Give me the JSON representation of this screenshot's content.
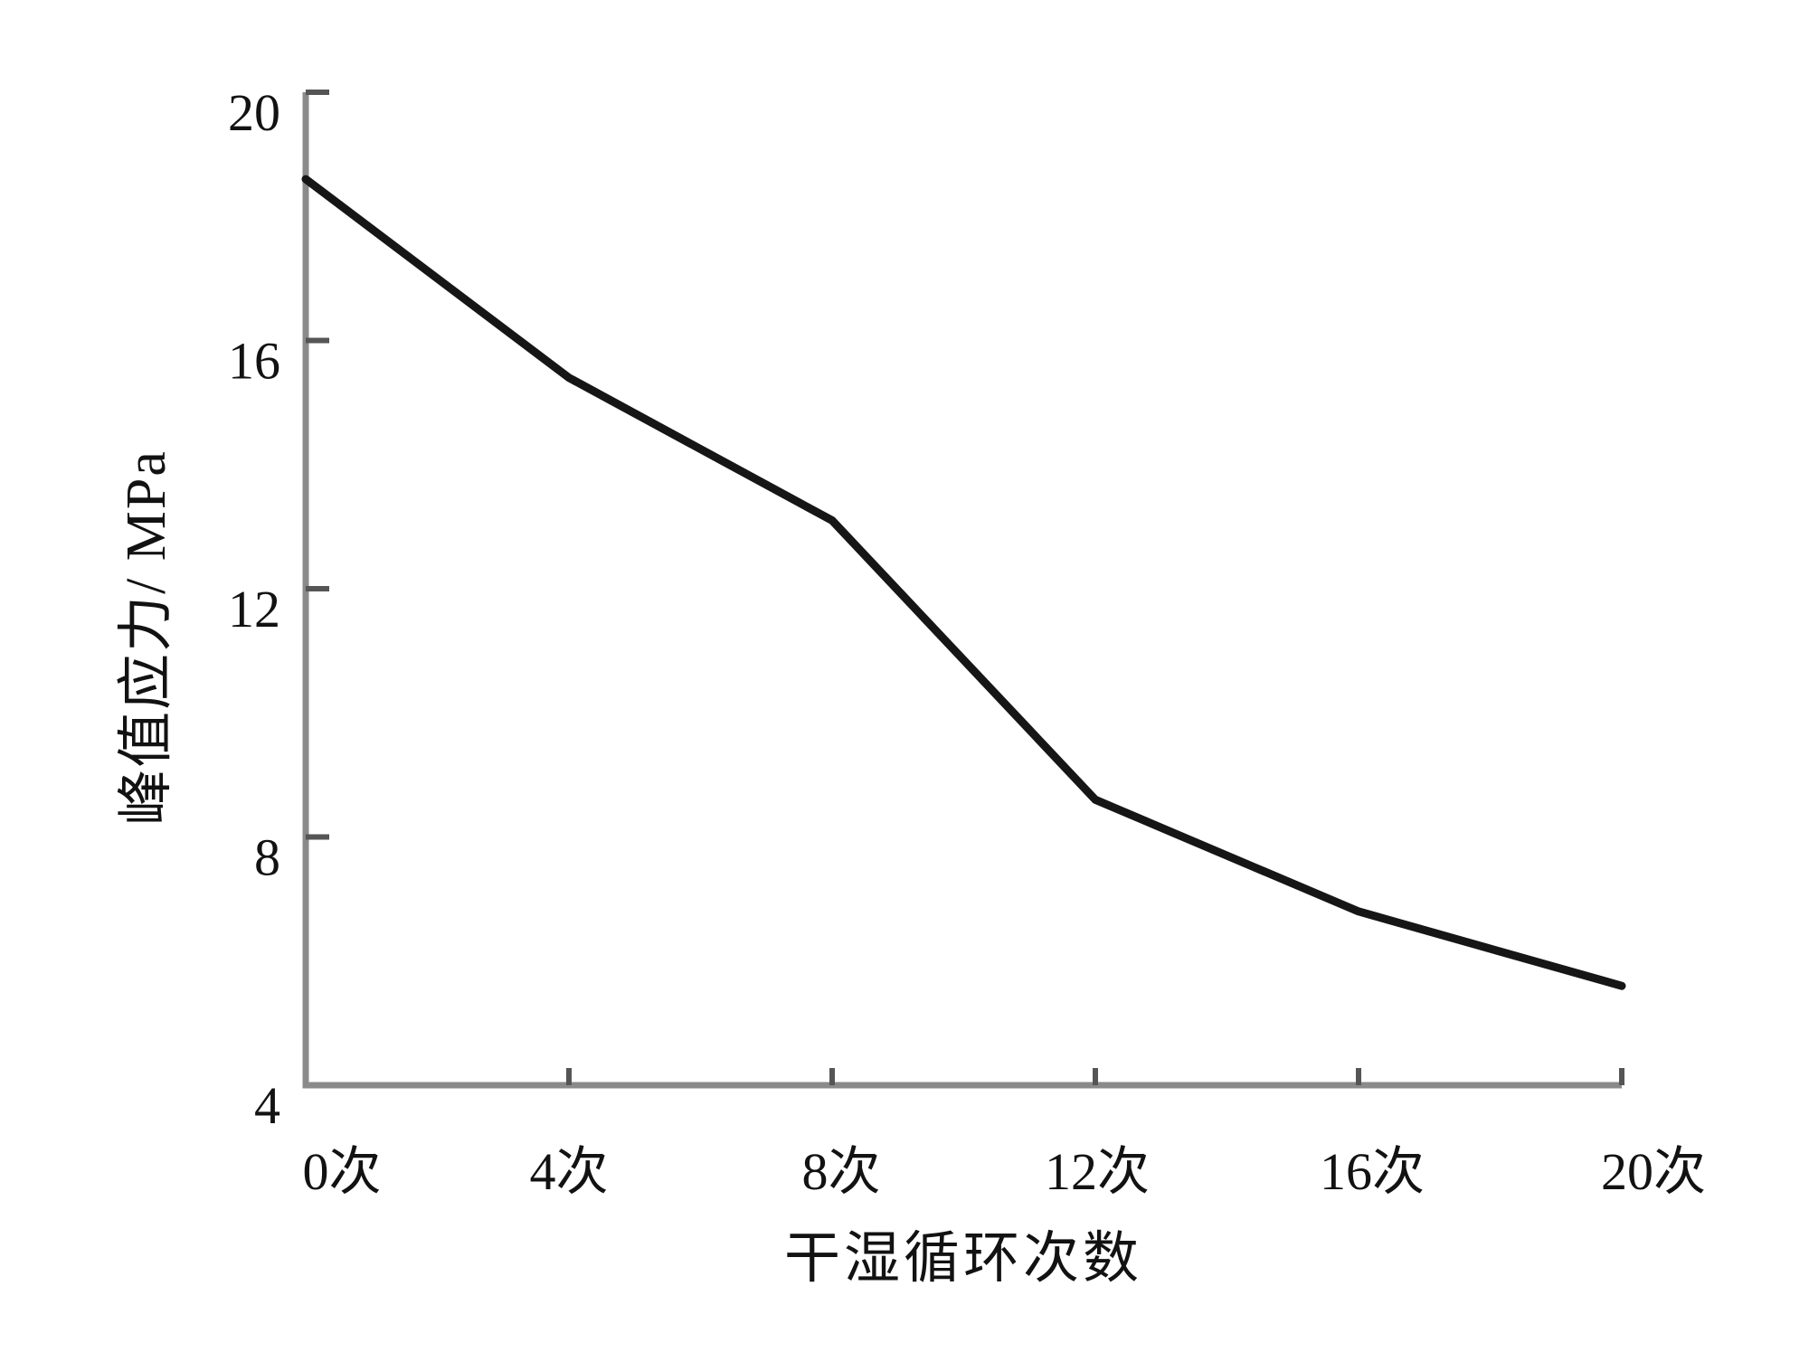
{
  "figure": {
    "background": "#ffffff"
  },
  "chart_data": {
    "type": "line",
    "title": "",
    "xlabel": "干湿循环次数",
    "ylabel": "峰值应力/ MPa",
    "x": [
      0,
      4,
      8,
      12,
      16,
      20
    ],
    "series": [
      {
        "name": "峰值应力",
        "values": [
          18.6,
          15.4,
          13.1,
          8.6,
          6.8,
          5.6
        ],
        "color": "#161616",
        "line_width": 9
      }
    ],
    "xtick_labels": [
      "0次",
      "4次",
      "8次",
      "12次",
      "16次",
      "20次"
    ],
    "xtick_values": [
      0,
      4,
      8,
      12,
      16,
      20
    ],
    "ytick_labels": [
      "20",
      "16",
      "12",
      "8",
      "4"
    ],
    "ytick_values": [
      20,
      16,
      12,
      8,
      4
    ],
    "xlim": [
      0,
      20
    ],
    "ylim": [
      4,
      20
    ],
    "grid": false,
    "legend": "none",
    "axis_color": "#8a8a8a",
    "tick_color": "#555555",
    "text_color": "#121212",
    "tick_label_font_size": 58
  }
}
